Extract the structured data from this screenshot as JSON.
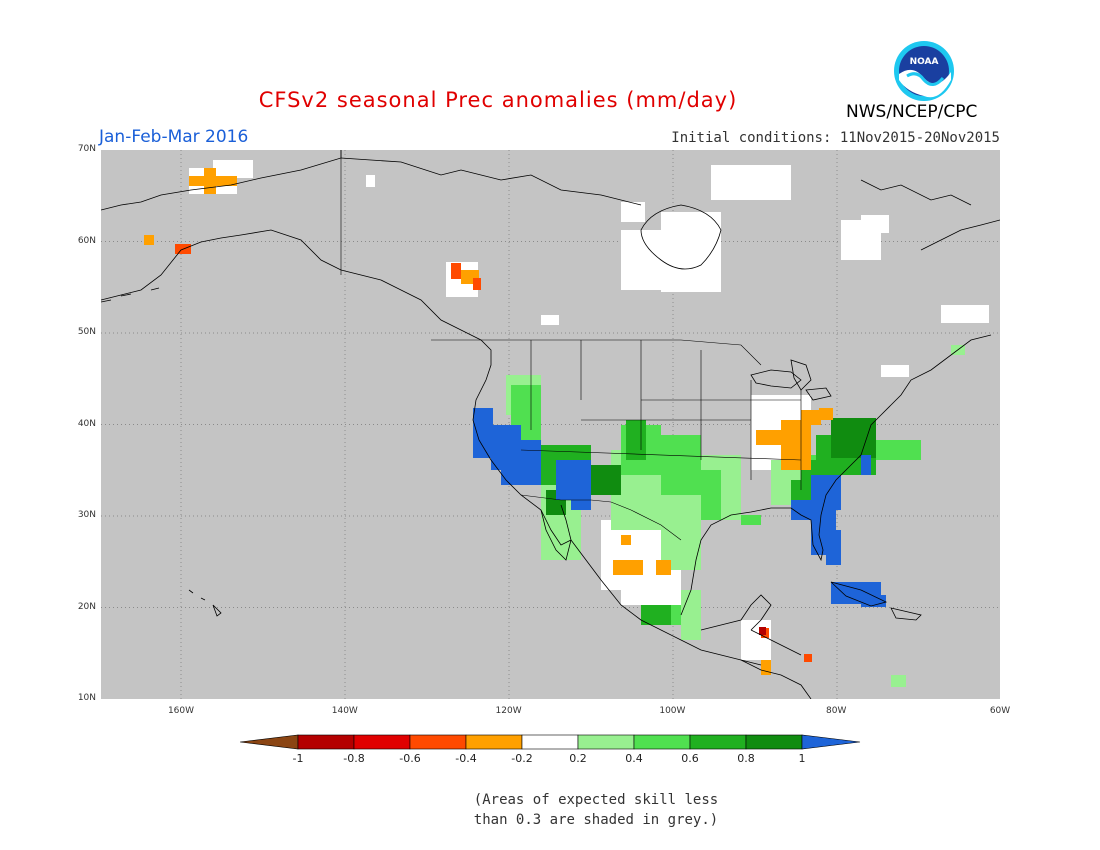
{
  "header": {
    "title": "CFSv2 seasonal Prec anomalies (mm/day)",
    "period": "Jan-Feb-Mar 2016",
    "initial_conditions": "Initial conditions: 11Nov2015-20Nov2015",
    "organization": "NWS/NCEP/CPC",
    "logo_text": "NOAA"
  },
  "axes": {
    "lat_labels": [
      "70N",
      "60N",
      "50N",
      "40N",
      "30N",
      "20N",
      "10N"
    ],
    "lon_labels": [
      "160W",
      "140W",
      "120W",
      "100W",
      "80W",
      "60W"
    ]
  },
  "colorbar": {
    "labels": [
      "-1",
      "-0.8",
      "-0.6",
      "-0.4",
      "-0.2",
      "0.2",
      "0.4",
      "0.6",
      "0.8",
      "1"
    ],
    "colors": [
      "#8b4513",
      "#b40000",
      "#e00000",
      "#ff4a00",
      "#ffa000",
      "#ffffff",
      "#98f090",
      "#50e050",
      "#20b020",
      "#108c10",
      "#1e64d8"
    ]
  },
  "note": {
    "line1": "(Areas of expected skill less",
    "line2": "than 0.3 are shaded in grey.)"
  },
  "colors": {
    "grey_mask": "#c4c4c4",
    "title_red": "#e00000",
    "period_blue": "#1a5fd8"
  }
}
